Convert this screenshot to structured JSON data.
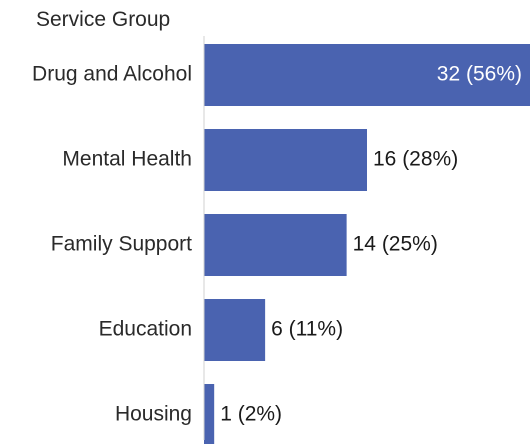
{
  "chart_data": {
    "type": "bar",
    "orientation": "horizontal",
    "axis_title": "Service Group",
    "categories": [
      "Drug and Alcohol",
      "Mental Health",
      "Family Support",
      "Education",
      "Housing"
    ],
    "values": [
      32,
      16,
      14,
      6,
      1
    ],
    "percentages": [
      56,
      28,
      25,
      11,
      2
    ],
    "data_labels": [
      "32 (56%)",
      "16 (28%)",
      "14 (25%)",
      "6 (11%)",
      "1 (2%)"
    ],
    "bar_color": "#4a63b0",
    "label_inside_color": "#ffffff",
    "label_outside_color": "#1a1a1a",
    "grid": false,
    "legend": "none"
  }
}
